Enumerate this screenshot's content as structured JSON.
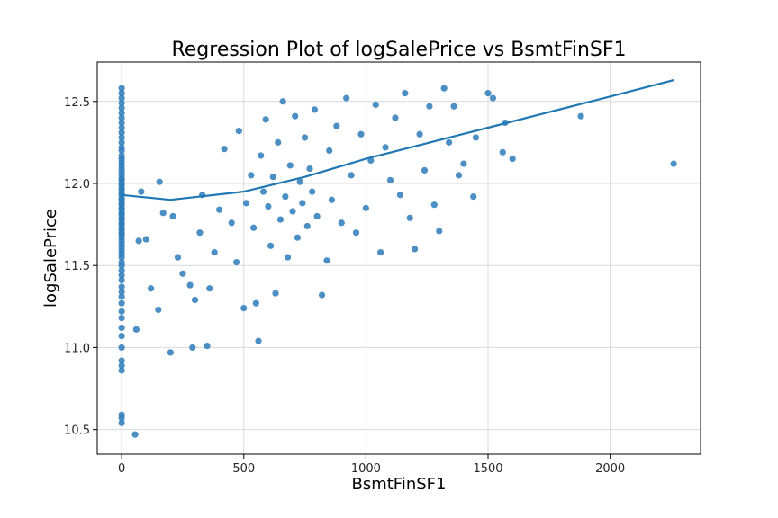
{
  "chart_data": {
    "type": "scatter",
    "title": "Regression Plot of logSalePrice vs BsmtFinSF1",
    "xlabel": "BsmtFinSF1",
    "ylabel": "logSalePrice",
    "xlim": [
      -100,
      2370
    ],
    "ylim": [
      10.35,
      12.74
    ],
    "xticks": [
      0,
      500,
      1000,
      1500,
      2000
    ],
    "yticks": [
      10.5,
      11.0,
      11.5,
      12.0,
      12.5
    ],
    "xtick_labels": [
      "0",
      "500",
      "1000",
      "1500",
      "2000"
    ],
    "ytick_labels": [
      "10.5",
      "11.0",
      "11.5",
      "12.0",
      "12.5"
    ],
    "grid": true,
    "point_color": "#2b7bba",
    "line_color": "#1f77b4",
    "regression_line": [
      [
        0,
        11.93
      ],
      [
        200,
        11.9
      ],
      [
        500,
        11.95
      ],
      [
        750,
        12.04
      ],
      [
        1000,
        12.15
      ],
      [
        1500,
        12.34
      ],
      [
        2000,
        12.53
      ],
      [
        2260,
        12.63
      ]
    ],
    "zero_points": [
      10.54,
      10.57,
      10.59,
      10.86,
      10.89,
      10.92,
      11.0,
      11.07,
      11.12,
      11.18,
      11.22,
      11.27,
      11.31,
      11.34,
      11.37,
      11.41,
      11.44,
      11.47,
      11.5,
      11.52,
      11.55,
      11.57,
      11.59,
      11.61,
      11.63,
      11.65,
      11.67,
      11.69,
      11.7,
      11.72,
      11.73,
      11.75,
      11.76,
      11.78,
      11.79,
      11.81,
      11.82,
      11.84,
      11.85,
      11.87,
      11.88,
      11.9,
      11.91,
      11.93,
      11.94,
      11.96,
      11.97,
      11.99,
      12.0,
      12.02,
      12.03,
      12.05,
      12.07,
      12.09,
      12.11,
      12.13,
      12.15,
      12.17,
      12.2,
      12.22,
      12.25,
      12.28,
      12.31,
      12.34,
      12.37,
      12.4,
      12.43,
      12.46,
      12.49,
      12.52,
      12.55,
      12.58
    ],
    "scatter_points": [
      [
        55,
        10.47
      ],
      [
        60,
        11.11
      ],
      [
        70,
        11.65
      ],
      [
        80,
        11.95
      ],
      [
        100,
        11.66
      ],
      [
        120,
        11.36
      ],
      [
        150,
        11.23
      ],
      [
        155,
        12.01
      ],
      [
        170,
        11.82
      ],
      [
        200,
        10.97
      ],
      [
        210,
        11.8
      ],
      [
        230,
        11.55
      ],
      [
        250,
        11.45
      ],
      [
        280,
        11.38
      ],
      [
        290,
        11.0
      ],
      [
        300,
        11.29
      ],
      [
        320,
        11.7
      ],
      [
        330,
        11.93
      ],
      [
        350,
        11.01
      ],
      [
        360,
        11.36
      ],
      [
        380,
        11.58
      ],
      [
        400,
        11.84
      ],
      [
        420,
        12.21
      ],
      [
        450,
        11.76
      ],
      [
        470,
        11.52
      ],
      [
        480,
        12.32
      ],
      [
        500,
        11.24
      ],
      [
        510,
        11.88
      ],
      [
        530,
        12.05
      ],
      [
        540,
        11.73
      ],
      [
        550,
        11.27
      ],
      [
        560,
        11.04
      ],
      [
        570,
        12.17
      ],
      [
        580,
        11.95
      ],
      [
        590,
        12.39
      ],
      [
        600,
        11.86
      ],
      [
        610,
        11.62
      ],
      [
        620,
        12.04
      ],
      [
        630,
        11.33
      ],
      [
        640,
        12.25
      ],
      [
        650,
        11.78
      ],
      [
        660,
        12.5
      ],
      [
        670,
        11.92
      ],
      [
        680,
        11.55
      ],
      [
        690,
        12.11
      ],
      [
        700,
        11.83
      ],
      [
        710,
        12.41
      ],
      [
        720,
        11.67
      ],
      [
        730,
        12.01
      ],
      [
        740,
        11.88
      ],
      [
        750,
        12.28
      ],
      [
        760,
        11.74
      ],
      [
        770,
        12.09
      ],
      [
        780,
        11.95
      ],
      [
        790,
        12.45
      ],
      [
        800,
        11.8
      ],
      [
        820,
        11.32
      ],
      [
        840,
        11.53
      ],
      [
        850,
        12.2
      ],
      [
        860,
        11.9
      ],
      [
        880,
        12.35
      ],
      [
        900,
        11.76
      ],
      [
        920,
        12.52
      ],
      [
        940,
        12.05
      ],
      [
        960,
        11.7
      ],
      [
        980,
        12.3
      ],
      [
        1000,
        11.85
      ],
      [
        1020,
        12.14
      ],
      [
        1040,
        12.48
      ],
      [
        1060,
        11.58
      ],
      [
        1080,
        12.22
      ],
      [
        1100,
        12.02
      ],
      [
        1120,
        12.4
      ],
      [
        1140,
        11.93
      ],
      [
        1160,
        12.55
      ],
      [
        1180,
        11.79
      ],
      [
        1200,
        11.6
      ],
      [
        1220,
        12.3
      ],
      [
        1240,
        12.08
      ],
      [
        1260,
        12.47
      ],
      [
        1280,
        11.87
      ],
      [
        1300,
        11.71
      ],
      [
        1320,
        12.58
      ],
      [
        1340,
        12.25
      ],
      [
        1360,
        12.47
      ],
      [
        1380,
        12.05
      ],
      [
        1400,
        12.12
      ],
      [
        1440,
        11.92
      ],
      [
        1450,
        12.28
      ],
      [
        1500,
        12.55
      ],
      [
        1520,
        12.52
      ],
      [
        1560,
        12.19
      ],
      [
        1570,
        12.37
      ],
      [
        1600,
        12.15
      ],
      [
        1880,
        12.41
      ],
      [
        2260,
        12.12
      ]
    ]
  }
}
